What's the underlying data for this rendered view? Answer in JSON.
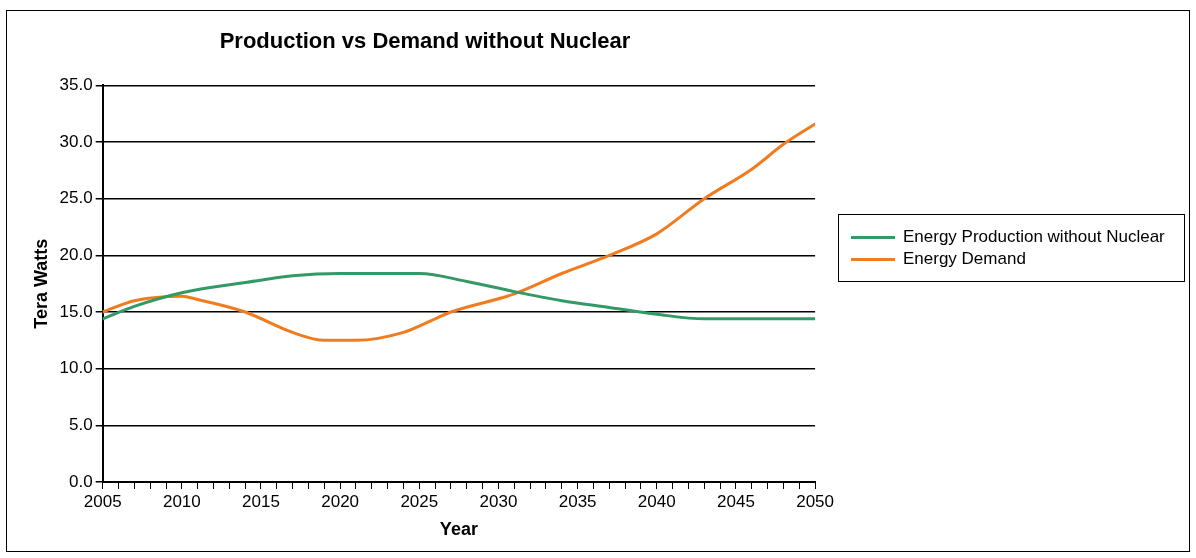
{
  "chart_data": {
    "type": "line",
    "title": "Production vs Demand without Nuclear",
    "xlabel": "Year",
    "ylabel": "Tera Watts",
    "xlim": [
      2005,
      2050
    ],
    "xticks": [
      2005,
      {
        "value": 2006,
        "label": null
      },
      {
        "value": 2007,
        "label": null
      },
      {
        "value": 2008,
        "label": null
      },
      {
        "value": 2009,
        "label": null
      },
      2010,
      {
        "value": 2011,
        "label": null
      },
      {
        "value": 2012,
        "label": null
      },
      {
        "value": 2013,
        "label": null
      },
      {
        "value": 2014,
        "label": null
      },
      2015,
      {
        "value": 2016,
        "label": null
      },
      {
        "value": 2017,
        "label": null
      },
      {
        "value": 2018,
        "label": null
      },
      {
        "value": 2019,
        "label": null
      },
      2020,
      {
        "value": 2021,
        "label": null
      },
      {
        "value": 2022,
        "label": null
      },
      {
        "value": 2023,
        "label": null
      },
      {
        "value": 2024,
        "label": null
      },
      2025,
      {
        "value": 2026,
        "label": null
      },
      {
        "value": 2027,
        "label": null
      },
      {
        "value": 2028,
        "label": null
      },
      {
        "value": 2029,
        "label": null
      },
      2030,
      {
        "value": 2031,
        "label": null
      },
      {
        "value": 2032,
        "label": null
      },
      {
        "value": 2033,
        "label": null
      },
      {
        "value": 2034,
        "label": null
      },
      2035,
      {
        "value": 2036,
        "label": null
      },
      {
        "value": 2037,
        "label": null
      },
      {
        "value": 2038,
        "label": null
      },
      {
        "value": 2039,
        "label": null
      },
      2040,
      {
        "value": 2041,
        "label": null
      },
      {
        "value": 2042,
        "label": null
      },
      {
        "value": 2043,
        "label": null
      },
      {
        "value": 2044,
        "label": null
      },
      2045,
      {
        "value": 2046,
        "label": null
      },
      {
        "value": 2047,
        "label": null
      },
      {
        "value": 2048,
        "label": null
      },
      {
        "value": 2049,
        "label": null
      },
      2050
    ],
    "ylim": [
      0,
      35
    ],
    "yticks": [
      {
        "value": 0,
        "label": "0.0"
      },
      {
        "value": 5,
        "label": "5.0"
      },
      {
        "value": 10,
        "label": "10.0"
      },
      {
        "value": 15,
        "label": "15.0"
      },
      {
        "value": 20,
        "label": "20.0"
      },
      {
        "value": 25,
        "label": "25.0"
      },
      {
        "value": 30,
        "label": "30.0"
      },
      {
        "value": 35,
        "label": "35.0"
      }
    ],
    "grid": "y",
    "legend": "right",
    "marker": "none",
    "line_style": "solid",
    "series": [
      {
        "name": "Energy Production without Nuclear",
        "color": "#339966",
        "x": [
          2005,
          2007,
          2010,
          2014,
          2017,
          2020,
          2025,
          2028,
          2031,
          2034,
          2037,
          2040,
          2043,
          2050
        ],
        "values": [
          14.4,
          15.5,
          16.7,
          17.6,
          18.2,
          18.4,
          18.4,
          17.7,
          16.8,
          16.0,
          15.4,
          14.8,
          14.4,
          14.4
        ]
      },
      {
        "name": "Energy Demand",
        "color": "#f07c1f",
        "x": [
          2005,
          2007,
          2010,
          2011,
          2014,
          2017,
          2019,
          2021,
          2024,
          2026,
          2027,
          2031,
          2034,
          2037,
          2040,
          2043,
          2046,
          2048,
          2050
        ],
        "values": [
          15.0,
          16.0,
          16.4,
          16.1,
          15.0,
          13.2,
          12.5,
          12.5,
          13.2,
          14.4,
          15.0,
          16.6,
          18.4,
          20.0,
          21.9,
          25.0,
          27.6,
          29.8,
          31.6
        ]
      }
    ]
  }
}
